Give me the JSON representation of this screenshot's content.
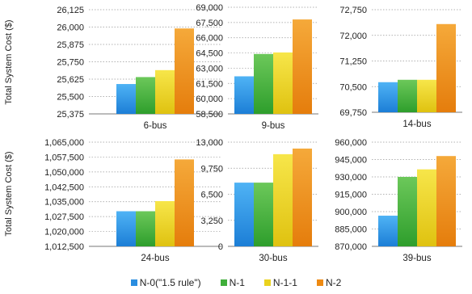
{
  "chart_data": [
    {
      "type": "bar",
      "xlabel": "6-bus",
      "ylabel": "Total System Cost ($)",
      "ylim": [
        25375,
        26125
      ],
      "yticks": [
        "26,125",
        "26,000",
        "25,875",
        "25,750",
        "25,625",
        "25,500",
        "25,375"
      ],
      "tickvals": [
        26125,
        26000,
        25875,
        25750,
        25625,
        25500,
        25375
      ],
      "values": [
        25590,
        25640,
        25690,
        25990
      ]
    },
    {
      "type": "bar",
      "xlabel": "9-bus",
      "ylabel": "",
      "ylim": [
        58500,
        69000
      ],
      "yticks": [
        "69,000",
        "67,500",
        "66,000",
        "64,500",
        "63,000",
        "61,500",
        "60,000",
        "58,500"
      ],
      "tickvals": [
        69000,
        67500,
        66000,
        64500,
        63000,
        61500,
        60000,
        58500
      ],
      "values": [
        62200,
        64400,
        64550,
        67800
      ]
    },
    {
      "type": "bar",
      "xlabel": "14-bus",
      "ylabel": "",
      "ylim": [
        69750,
        72750
      ],
      "yticks": [
        "72,750",
        "72,000",
        "71,250",
        "70,500",
        "69,750"
      ],
      "tickvals": [
        72750,
        72000,
        71250,
        70500,
        69750
      ],
      "values": [
        70630,
        70700,
        70700,
        72330
      ]
    },
    {
      "type": "bar",
      "xlabel": "24-bus",
      "ylabel": "Total System Cost ($)",
      "ylim": [
        1012500,
        1065000
      ],
      "yticks": [
        "1,065,000",
        "1,057,500",
        "1,050,000",
        "1,042,500",
        "1,035,000",
        "1,027,500",
        "1,020,000",
        "1,012,500"
      ],
      "tickvals": [
        1065000,
        1057500,
        1050000,
        1042500,
        1035000,
        1027500,
        1020000,
        1012500
      ],
      "values": [
        1030200,
        1030200,
        1035300,
        1056300
      ]
    },
    {
      "type": "bar",
      "xlabel": "30-bus",
      "ylabel": "",
      "ylim": [
        0,
        13000
      ],
      "yticks": [
        "13,000",
        "9,750",
        "6,500",
        "3,250",
        "0"
      ],
      "tickvals": [
        13000,
        9750,
        6500,
        3250,
        0
      ],
      "values": [
        7950,
        7950,
        11500,
        12200
      ]
    },
    {
      "type": "bar",
      "xlabel": "39-bus",
      "ylabel": "",
      "ylim": [
        870000,
        960000
      ],
      "yticks": [
        "960,000",
        "945,000",
        "930,000",
        "915,000",
        "900,000",
        "885,000",
        "870,000"
      ],
      "tickvals": [
        960000,
        945000,
        930000,
        915000,
        900000,
        885000,
        870000
      ],
      "values": [
        896500,
        930000,
        936500,
        948000
      ]
    }
  ],
  "legend": [
    {
      "label": "N-0(\"1.5 rule\")",
      "color": "#2a8de0"
    },
    {
      "label": "N-1",
      "color": "#3fae3a"
    },
    {
      "label": "N-1-1",
      "color": "#ead21e"
    },
    {
      "label": "N-2",
      "color": "#ee8a12"
    }
  ],
  "colors": {
    "series_top": [
      "#4fb3f5",
      "#6cc85a",
      "#f7e64a",
      "#f5a93a"
    ],
    "series_bottom": [
      "#1c7ed6",
      "#2e9e2c",
      "#dfc210",
      "#e57d0c"
    ],
    "gridline": "#999999"
  }
}
